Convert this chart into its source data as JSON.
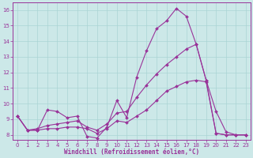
{
  "bg_color": "#cce8e8",
  "line_color": "#993399",
  "grid_color": "#aad4d4",
  "xlabel": "Windchill (Refroidissement éolien,°C)",
  "xlabel_color": "#993399",
  "tick_color": "#993399",
  "xmin": 0,
  "xmax": 23,
  "ymin": 8,
  "ymax": 16,
  "yticks": [
    8,
    9,
    10,
    11,
    12,
    13,
    14,
    15,
    16
  ],
  "xticks": [
    0,
    1,
    2,
    3,
    4,
    5,
    6,
    7,
    8,
    9,
    10,
    11,
    12,
    13,
    14,
    15,
    16,
    17,
    18,
    19,
    20,
    21,
    22,
    23
  ],
  "line1_x": [
    0,
    1,
    2,
    3,
    4,
    5,
    6,
    7,
    8,
    9,
    10,
    11,
    12,
    13,
    14,
    15,
    16,
    17,
    18,
    19,
    20,
    21,
    22,
    23
  ],
  "line1_y": [
    9.2,
    8.3,
    8.3,
    9.6,
    9.5,
    9.1,
    9.2,
    7.9,
    7.8,
    8.5,
    10.2,
    9.1,
    11.7,
    13.4,
    14.8,
    15.3,
    16.1,
    15.6,
    13.8,
    11.5,
    8.1,
    8.0,
    8.0,
    8.0
  ],
  "line2_x": [
    0,
    1,
    2,
    3,
    4,
    5,
    6,
    7,
    8,
    9,
    10,
    11,
    12,
    13,
    14,
    15,
    16,
    17,
    18,
    19,
    20,
    21,
    22,
    23
  ],
  "line2_y": [
    9.2,
    8.3,
    8.4,
    8.6,
    8.7,
    8.8,
    8.9,
    8.5,
    8.3,
    8.7,
    9.4,
    9.5,
    10.4,
    11.2,
    11.9,
    12.5,
    13.0,
    13.5,
    13.8,
    11.5,
    9.5,
    8.2,
    8.0,
    8.0
  ],
  "line3_x": [
    0,
    1,
    2,
    3,
    4,
    5,
    6,
    7,
    8,
    9,
    10,
    11,
    12,
    13,
    14,
    15,
    16,
    17,
    18,
    19,
    20,
    21,
    22,
    23
  ],
  "line3_y": [
    9.2,
    8.3,
    8.3,
    8.4,
    8.4,
    8.5,
    8.5,
    8.4,
    8.1,
    8.4,
    8.9,
    8.8,
    9.2,
    9.6,
    10.2,
    10.8,
    11.1,
    11.4,
    11.5,
    11.4,
    8.1,
    8.0,
    8.0,
    8.0
  ]
}
